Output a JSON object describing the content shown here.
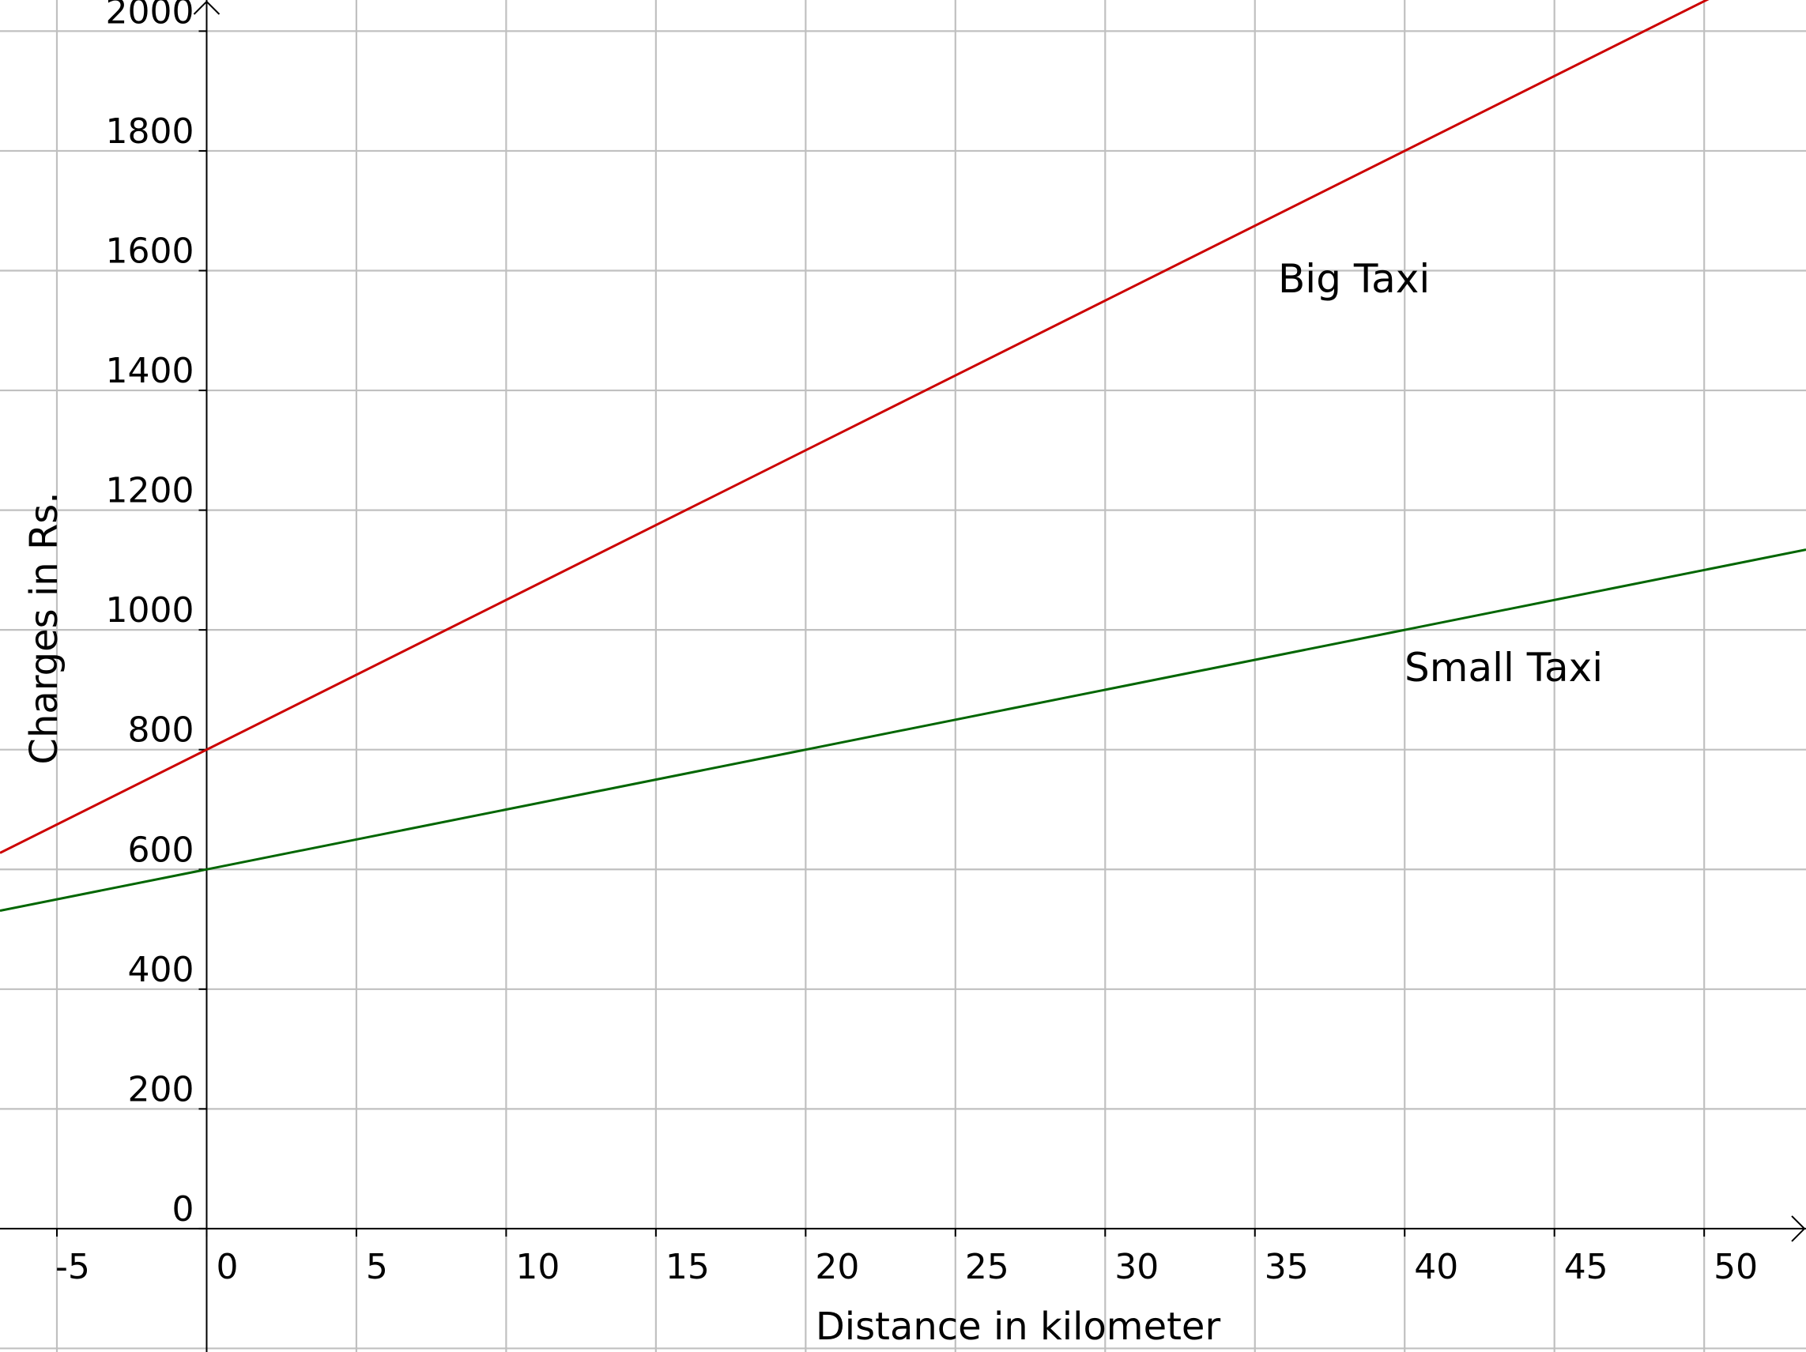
{
  "chart_data": {
    "type": "line",
    "title": "",
    "xlabel": "Distance in kilometer",
    "ylabel": "Charges in Rs.",
    "xlim": [
      -6.9,
      53.4
    ],
    "ylim": [
      -206,
      2052
    ],
    "grid": true,
    "x_ticks": [
      -5,
      0,
      5,
      10,
      15,
      20,
      25,
      30,
      35,
      40,
      45,
      50
    ],
    "x_tick_labels": [
      "-5",
      "0",
      "5",
      "10",
      "15",
      "20",
      "25",
      "30",
      "35",
      "40",
      "45",
      "50"
    ],
    "y_ticks": [
      0,
      200,
      400,
      600,
      800,
      1000,
      1200,
      1400,
      1600,
      1800,
      2000
    ],
    "y_tick_labels": [
      "0",
      "200",
      "400",
      "600",
      "800",
      "1000",
      "1200",
      "1400",
      "1600",
      "1800",
      "2000"
    ],
    "series": [
      {
        "name": "Big Taxi",
        "color": "#cc0000",
        "intercept": 800,
        "slope": 25,
        "x": [
          -6.9,
          0,
          20,
          40,
          50.3
        ],
        "values": [
          627.5,
          800,
          1300,
          1800,
          2057.5
        ]
      },
      {
        "name": "Small Taxi",
        "color": "#006600",
        "intercept": 600,
        "slope": 10,
        "x": [
          -6.9,
          0,
          20,
          40,
          53.4
        ],
        "values": [
          531,
          600,
          800,
          1000,
          1134
        ]
      }
    ],
    "annotations": [
      "Big Taxi",
      "Small Taxi"
    ]
  }
}
